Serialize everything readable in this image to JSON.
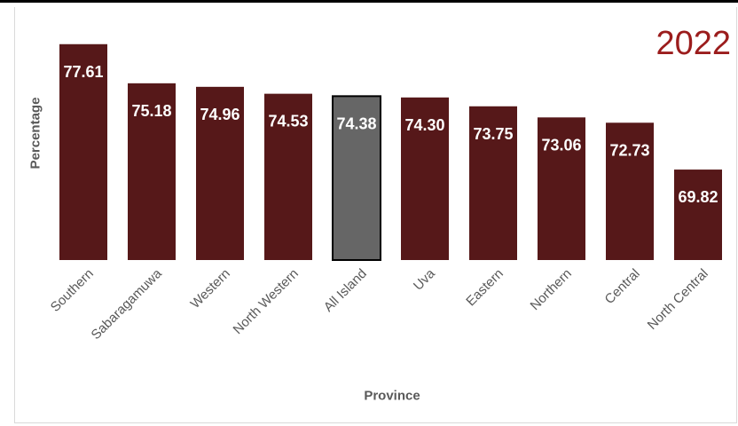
{
  "colors": {
    "bar": "#561819",
    "highlight_bar": "#666666",
    "year_text": "#9b1c1c",
    "value_label": "#ffffff",
    "axis_text": "#595959"
  },
  "chart_data": {
    "type": "bar",
    "title": "2022",
    "xlabel": "Province",
    "ylabel": "Percentage",
    "categories": [
      "Southern",
      "Sabaragamuwa",
      "Western",
      "North Western",
      "All Island",
      "Uva",
      "Eastern",
      "Northern",
      "Central",
      "North Central"
    ],
    "values": [
      77.61,
      75.18,
      74.96,
      74.53,
      74.38,
      74.3,
      73.75,
      73.06,
      72.73,
      69.82
    ],
    "value_labels": [
      "77.61",
      "75.18",
      "74.96",
      "74.53",
      "74.38",
      "74.30",
      "73.75",
      "73.06",
      "72.73",
      "69.82"
    ],
    "highlight": "All Island",
    "ylim": [
      64.2,
      78.7
    ],
    "grid": false,
    "legend": "none"
  }
}
